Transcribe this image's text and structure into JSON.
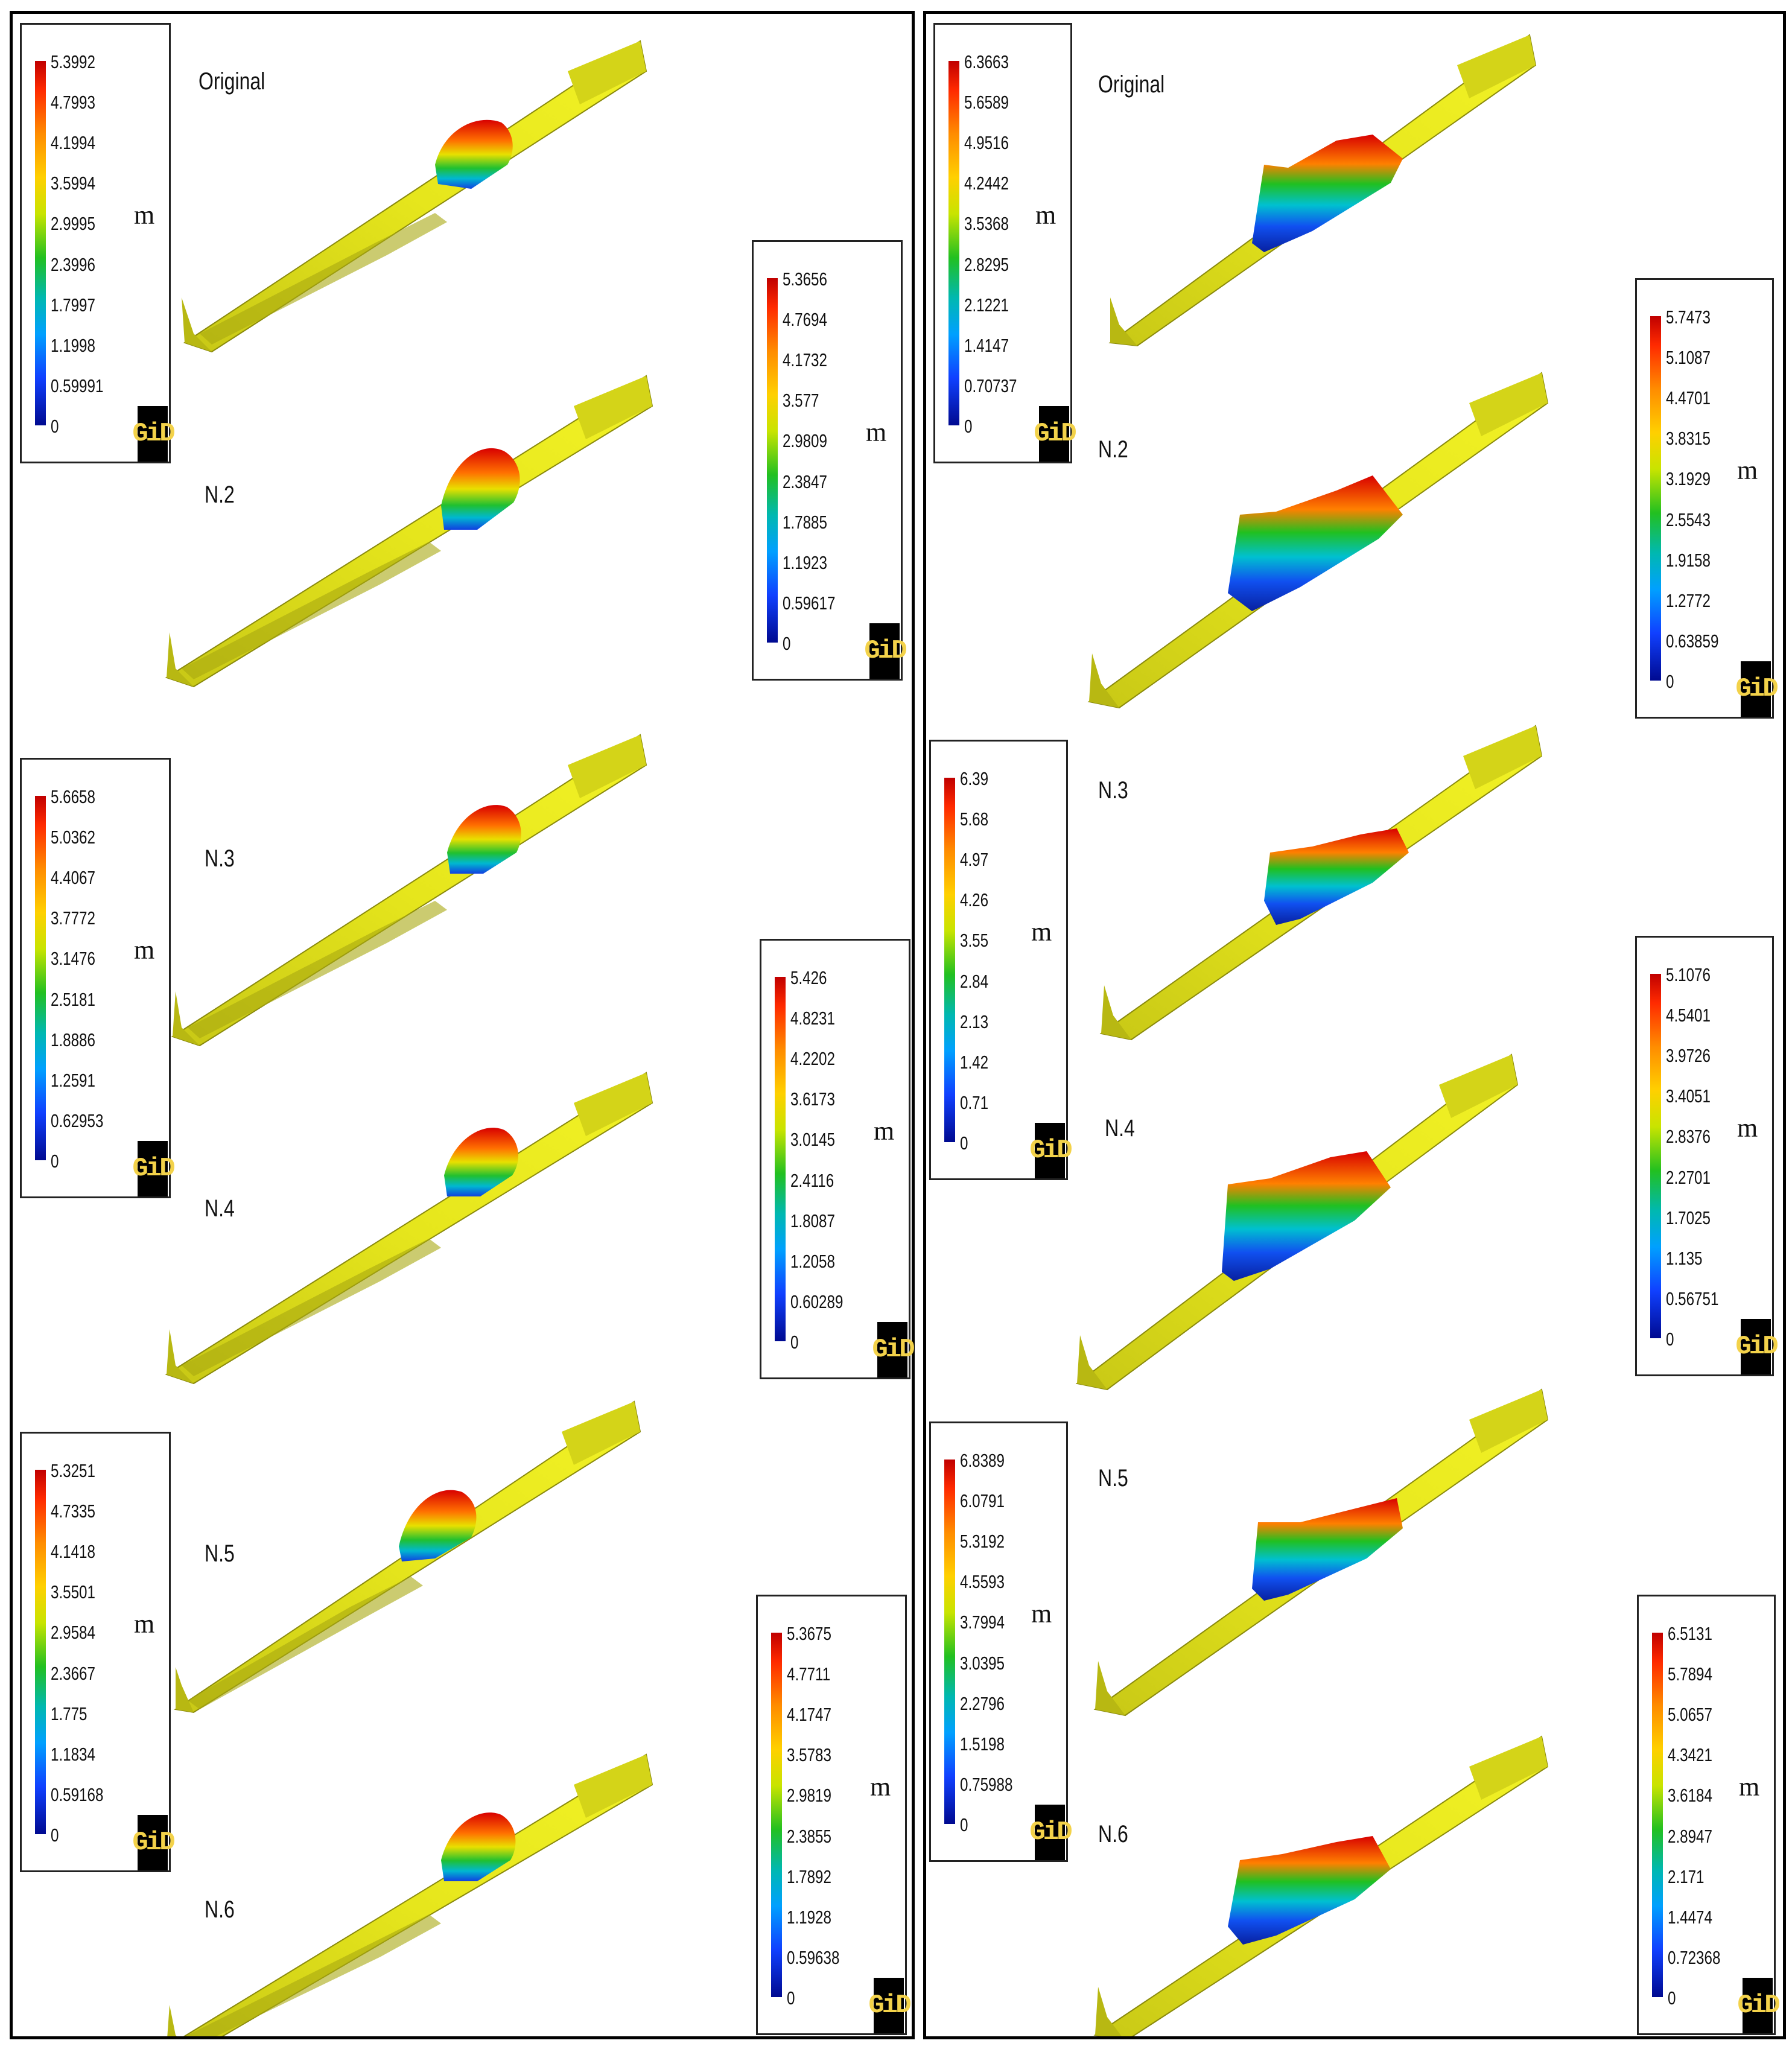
{
  "panels": [
    {
      "id": "left",
      "rows": [
        {
          "label": "Original",
          "legend": {
            "unit": "m",
            "values": [
              "5.3992",
              "4.7993",
              "4.1994",
              "3.5994",
              "2.9995",
              "2.3996",
              "1.7997",
              "1.1998",
              "0.59991",
              "0"
            ]
          }
        },
        {
          "label": "N.2",
          "legend": {
            "unit": "m",
            "values": [
              "5.3656",
              "4.7694",
              "4.1732",
              "3.577",
              "2.9809",
              "2.3847",
              "1.7885",
              "1.1923",
              "0.59617",
              "0"
            ]
          }
        },
        {
          "label": "N.3",
          "legend": {
            "unit": "m",
            "values": [
              "5.6658",
              "5.0362",
              "4.4067",
              "3.7772",
              "3.1476",
              "2.5181",
              "1.8886",
              "1.2591",
              "0.62953",
              "0"
            ]
          }
        },
        {
          "label": "N.4",
          "legend": {
            "unit": "m",
            "values": [
              "5.426",
              "4.8231",
              "4.2202",
              "3.6173",
              "3.0145",
              "2.4116",
              "1.8087",
              "1.2058",
              "0.60289",
              "0"
            ]
          }
        },
        {
          "label": "N.5",
          "legend": {
            "unit": "m",
            "values": [
              "5.3251",
              "4.7335",
              "4.1418",
              "3.5501",
              "2.9584",
              "2.3667",
              "1.775",
              "1.1834",
              "0.59168",
              "0"
            ]
          }
        },
        {
          "label": "N.6",
          "legend": {
            "unit": "m",
            "values": [
              "5.3675",
              "4.7711",
              "4.1747",
              "3.5783",
              "2.9819",
              "2.3855",
              "1.7892",
              "1.1928",
              "0.59638",
              "0"
            ]
          }
        }
      ]
    },
    {
      "id": "right",
      "rows": [
        {
          "label": "Original",
          "legend": {
            "unit": "m",
            "values": [
              "6.3663",
              "5.6589",
              "4.9516",
              "4.2442",
              "3.5368",
              "2.8295",
              "2.1221",
              "1.4147",
              "0.70737",
              "0"
            ]
          }
        },
        {
          "label": "N.2",
          "legend": {
            "unit": "m",
            "values": [
              "5.7473",
              "5.1087",
              "4.4701",
              "3.8315",
              "3.1929",
              "2.5543",
              "1.9158",
              "1.2772",
              "0.63859",
              "0"
            ]
          }
        },
        {
          "label": "N.3",
          "legend": {
            "unit": "m",
            "values": [
              "6.39",
              "5.68",
              "4.97",
              "4.26",
              "3.55",
              "2.84",
              "2.13",
              "1.42",
              "0.71",
              "0"
            ]
          }
        },
        {
          "label": "N.4",
          "legend": {
            "unit": "m",
            "values": [
              "5.1076",
              "4.5401",
              "3.9726",
              "3.4051",
              "2.8376",
              "2.2701",
              "1.7025",
              "1.135",
              "0.56751",
              "0"
            ]
          }
        },
        {
          "label": "N.5",
          "legend": {
            "unit": "m",
            "values": [
              "6.8389",
              "6.0791",
              "5.3192",
              "4.5593",
              "3.7994",
              "3.0395",
              "2.2796",
              "1.5198",
              "0.75988",
              "0"
            ]
          }
        },
        {
          "label": "N.6",
          "legend": {
            "unit": "m",
            "values": [
              "6.5131",
              "5.7894",
              "5.0657",
              "4.3421",
              "3.6184",
              "2.8947",
              "2.171",
              "1.4474",
              "0.72368",
              "0"
            ]
          }
        }
      ]
    }
  ],
  "logo_text": "GiD",
  "colors": {
    "terrain": "#e8e81a",
    "terrain_shadow": "#9a9a10",
    "terrain_dark": "#6b6b08",
    "deposit_top": "#e01010",
    "deposit_mid": "#20c020",
    "deposit_low": "#1030e0",
    "frame": "#000000"
  }
}
